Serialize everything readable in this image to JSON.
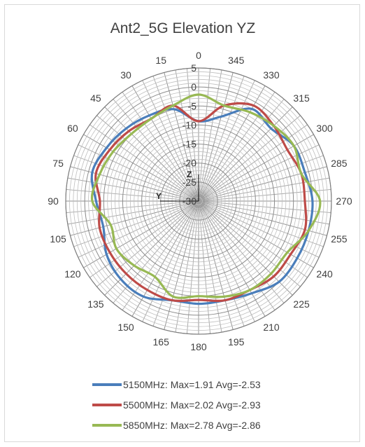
{
  "chart_data": {
    "type": "polar-line",
    "title": "Ant2_5G Elevation YZ",
    "angular_axis": {
      "direction": "counterclockwise",
      "zero_at": "top",
      "tick_labels": [
        "0",
        "15",
        "30",
        "45",
        "60",
        "75",
        "90",
        "105",
        "120",
        "135",
        "150",
        "165",
        "180",
        "195",
        "210",
        "225",
        "240",
        "255",
        "270",
        "285",
        "300",
        "315",
        "330",
        "345"
      ],
      "minor_step_deg": 5
    },
    "radial_axis": {
      "range": [
        -30,
        5
      ],
      "tick_labels": [
        "5",
        "0",
        "-5",
        "-10",
        "-15",
        "-20",
        "-25",
        "-30"
      ]
    },
    "axis_markers": {
      "z": "Z",
      "y": "Y"
    },
    "legend_position": "bottom",
    "angles_deg": [
      0,
      15,
      30,
      45,
      60,
      75,
      90,
      105,
      120,
      135,
      150,
      165,
      180,
      195,
      210,
      225,
      240,
      255,
      270,
      285,
      300,
      315,
      330,
      345
    ],
    "series": [
      {
        "name": "5150MHz",
        "color": "#4a7ebb",
        "max": 1.91,
        "avg": -2.53,
        "label": "5150MHz: Max=1.91 Avg=-2.53",
        "values": [
          -9,
          -5,
          -4,
          -3,
          -2,
          -1,
          -3,
          -4,
          -2,
          -1,
          -1,
          -3,
          -3,
          -3,
          -2,
          0,
          0,
          0,
          0,
          -1,
          -1,
          -3,
          -2,
          -7
        ]
      },
      {
        "name": "5500MHz",
        "color": "#be4b48",
        "max": 2.02,
        "avg": -2.93,
        "label": "5500MHz: Max=2.02 Avg=-2.93",
        "values": [
          -9,
          -4,
          -5,
          -4,
          -3,
          -2,
          -4,
          -3,
          -3,
          -3,
          -3,
          -3,
          -4,
          -3,
          -3,
          -2,
          -2,
          -1,
          -2,
          -2,
          -3,
          -2,
          -1,
          -4
        ]
      },
      {
        "name": "5850MHz",
        "color": "#98b954",
        "max": 2.78,
        "avg": -2.86,
        "label": "5850MHz: Max=2.78 Avg=-2.86",
        "values": [
          -2,
          -4,
          -5,
          -5,
          -4,
          -3,
          -2,
          -6,
          -5,
          -6,
          -7,
          -4,
          -5,
          -4,
          -3,
          -3,
          -3,
          0,
          2,
          -2,
          -1,
          -2,
          -3,
          -4
        ]
      }
    ]
  }
}
